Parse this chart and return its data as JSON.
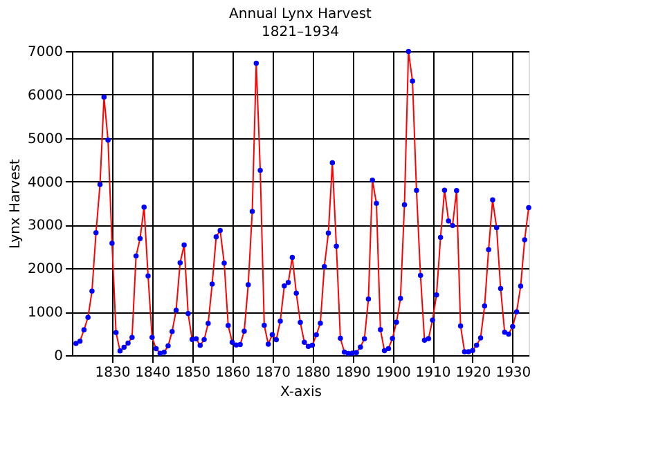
{
  "chart_data": {
    "type": "line",
    "title": "Annual Lynx Harvest",
    "subtitle": "1821–1934",
    "xlabel": "X-axis",
    "ylabel": "Lynx Harvest",
    "x": [
      1821,
      1822,
      1823,
      1824,
      1825,
      1826,
      1827,
      1828,
      1829,
      1830,
      1831,
      1832,
      1833,
      1834,
      1835,
      1836,
      1837,
      1838,
      1839,
      1840,
      1841,
      1842,
      1843,
      1844,
      1845,
      1846,
      1847,
      1848,
      1849,
      1850,
      1851,
      1852,
      1853,
      1854,
      1855,
      1856,
      1857,
      1858,
      1859,
      1860,
      1861,
      1862,
      1863,
      1864,
      1865,
      1866,
      1867,
      1868,
      1869,
      1870,
      1871,
      1872,
      1873,
      1874,
      1875,
      1876,
      1877,
      1878,
      1879,
      1880,
      1881,
      1882,
      1883,
      1884,
      1885,
      1886,
      1887,
      1888,
      1889,
      1890,
      1891,
      1892,
      1893,
      1894,
      1895,
      1896,
      1897,
      1898,
      1899,
      1900,
      1901,
      1902,
      1903,
      1904,
      1905,
      1906,
      1907,
      1908,
      1909,
      1910,
      1911,
      1912,
      1913,
      1914,
      1915,
      1916,
      1917,
      1918,
      1919,
      1920,
      1921,
      1922,
      1923,
      1924,
      1925,
      1926,
      1927,
      1928,
      1929,
      1930,
      1931,
      1932,
      1933,
      1934
    ],
    "series": [
      {
        "color": "#ff0000",
        "marker": "none",
        "values": [
          269,
          321,
          585,
          871,
          1475,
          2821,
          3928,
          5943,
          4950,
          2577,
          523,
          98,
          184,
          279,
          409,
          2285,
          2685,
          3409,
          1824,
          409,
          151,
          45,
          68,
          213,
          546,
          1033,
          2129,
          2536,
          957,
          361,
          377,
          225,
          360,
          731,
          1638,
          2725,
          2871,
          2119,
          684,
          299,
          236,
          245,
          552,
          1623,
          3311,
          6721,
          4254,
          687,
          255,
          473,
          358,
          784,
          1594,
          1676,
          2251,
          1426,
          756,
          299,
          201,
          229,
          469,
          736,
          2042,
          2811,
          4431,
          2511,
          389,
          73,
          39,
          49,
          59,
          188,
          377,
          1292,
          4031,
          3495,
          587,
          105,
          153,
          387,
          758,
          1307,
          3465,
          6991,
          6313,
          3794,
          1836,
          345,
          382,
          808,
          1388,
          2713,
          3800,
          3091,
          2985,
          3790,
          674,
          81,
          80,
          108,
          229,
          399,
          1132,
          2432,
          3574,
          2935,
          1537,
          529,
          485,
          662,
          1000,
          1590,
          2657,
          3396
        ]
      },
      {
        "type": "scatter",
        "color": "#0000ff",
        "marker": "circle",
        "values": [
          269,
          321,
          585,
          871,
          1475,
          2821,
          3928,
          5943,
          4950,
          2577,
          523,
          98,
          184,
          279,
          409,
          2285,
          2685,
          3409,
          1824,
          409,
          151,
          45,
          68,
          213,
          546,
          1033,
          2129,
          2536,
          957,
          361,
          377,
          225,
          360,
          731,
          1638,
          2725,
          2871,
          2119,
          684,
          299,
          236,
          245,
          552,
          1623,
          3311,
          6721,
          4254,
          687,
          255,
          473,
          358,
          784,
          1594,
          1676,
          2251,
          1426,
          756,
          299,
          201,
          229,
          469,
          736,
          2042,
          2811,
          4431,
          2511,
          389,
          73,
          39,
          49,
          59,
          188,
          377,
          1292,
          4031,
          3495,
          587,
          105,
          153,
          387,
          758,
          1307,
          3465,
          6991,
          6313,
          3794,
          1836,
          345,
          382,
          808,
          1388,
          2713,
          3800,
          3091,
          2985,
          3790,
          674,
          81,
          80,
          108,
          229,
          399,
          1132,
          2432,
          3574,
          2935,
          1537,
          529,
          485,
          662,
          1000,
          1590,
          2657,
          3396
        ]
      }
    ],
    "xlim": [
      1820,
      1934
    ],
    "xticks": [
      1830,
      1840,
      1850,
      1860,
      1870,
      1880,
      1890,
      1900,
      1910,
      1920,
      1930
    ],
    "ylim": [
      0,
      7000
    ],
    "yticks": [
      0,
      1000,
      2000,
      3000,
      4000,
      5000,
      6000,
      7000
    ],
    "grid": true
  }
}
